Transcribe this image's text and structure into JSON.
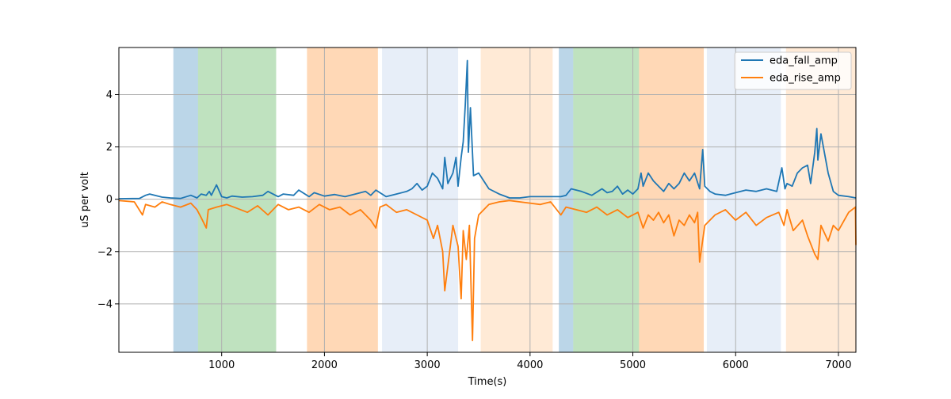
{
  "chart_data": {
    "type": "line",
    "title": "",
    "xlabel": "Time(s)",
    "ylabel": "uS per volt",
    "xlim": [
      0,
      7170
    ],
    "ylim": [
      -5.85,
      5.8
    ],
    "xticks": [
      1000,
      2000,
      3000,
      4000,
      5000,
      6000,
      7000
    ],
    "xtick_labels": [
      "1000",
      "2000",
      "3000",
      "4000",
      "5000",
      "6000",
      "7000"
    ],
    "yticks": [
      -4,
      -2,
      0,
      2,
      4
    ],
    "ytick_labels": [
      "−4",
      "−2",
      "0",
      "2",
      "4"
    ],
    "grid": true,
    "legend_position": "top-right",
    "colors": {
      "fall": "#1f77b4",
      "rise": "#ff7f0e",
      "grid": "#b0b0b0"
    },
    "shaded_regions": [
      {
        "x0": 530,
        "x1": 770,
        "color": "#1f77b4",
        "alpha": 0.3
      },
      {
        "x0": 770,
        "x1": 1530,
        "color": "#2ca02c",
        "alpha": 0.3
      },
      {
        "x0": 1830,
        "x1": 2520,
        "color": "#ff7f0e",
        "alpha": 0.3
      },
      {
        "x0": 2560,
        "x1": 3300,
        "color": "#aec7e8",
        "alpha": 0.3
      },
      {
        "x0": 3520,
        "x1": 4220,
        "color": "#ffbb78",
        "alpha": 0.3
      },
      {
        "x0": 4280,
        "x1": 4420,
        "color": "#1f77b4",
        "alpha": 0.3
      },
      {
        "x0": 4420,
        "x1": 5060,
        "color": "#2ca02c",
        "alpha": 0.3
      },
      {
        "x0": 5060,
        "x1": 5690,
        "color": "#ff7f0e",
        "alpha": 0.3
      },
      {
        "x0": 5720,
        "x1": 6440,
        "color": "#aec7e8",
        "alpha": 0.3
      },
      {
        "x0": 6490,
        "x1": 7170,
        "color": "#ffbb78",
        "alpha": 0.3
      }
    ],
    "series": [
      {
        "name": "eda_fall_amp",
        "color": "#1f77b4",
        "x": [
          0,
          200,
          260,
          300,
          420,
          500,
          600,
          700,
          760,
          800,
          850,
          880,
          900,
          950,
          1000,
          1050,
          1100,
          1200,
          1300,
          1400,
          1450,
          1550,
          1600,
          1700,
          1750,
          1850,
          1900,
          2000,
          2100,
          2200,
          2300,
          2400,
          2450,
          2500,
          2600,
          2700,
          2800,
          2850,
          2900,
          2950,
          3000,
          3050,
          3100,
          3150,
          3170,
          3200,
          3250,
          3280,
          3300,
          3330,
          3350,
          3370,
          3390,
          3400,
          3420,
          3450,
          3500,
          3600,
          3700,
          3800,
          3900,
          4000,
          4100,
          4200,
          4300,
          4350,
          4400,
          4500,
          4600,
          4700,
          4750,
          4800,
          4850,
          4900,
          4950,
          5000,
          5050,
          5080,
          5100,
          5150,
          5200,
          5250,
          5300,
          5350,
          5400,
          5450,
          5500,
          5550,
          5600,
          5650,
          5680,
          5700,
          5750,
          5800,
          5900,
          6000,
          6100,
          6200,
          6300,
          6400,
          6450,
          6480,
          6500,
          6550,
          6600,
          6650,
          6700,
          6730,
          6770,
          6790,
          6800,
          6830,
          6900,
          6950,
          7000,
          7100,
          7170
        ],
        "y": [
          0.02,
          0.03,
          0.15,
          0.2,
          0.08,
          0.05,
          0.03,
          0.15,
          0.05,
          0.2,
          0.15,
          0.3,
          0.15,
          0.55,
          0.1,
          0.05,
          0.12,
          0.08,
          0.1,
          0.15,
          0.3,
          0.1,
          0.2,
          0.15,
          0.35,
          0.1,
          0.25,
          0.12,
          0.18,
          0.1,
          0.2,
          0.3,
          0.15,
          0.35,
          0.1,
          0.2,
          0.3,
          0.4,
          0.6,
          0.35,
          0.5,
          1.0,
          0.8,
          0.4,
          1.6,
          0.6,
          1.0,
          1.6,
          0.5,
          1.6,
          2.2,
          3.6,
          5.3,
          1.8,
          3.5,
          0.9,
          1.0,
          0.4,
          0.2,
          0.05,
          0.05,
          0.1,
          0.1,
          0.1,
          0.1,
          0.15,
          0.4,
          0.3,
          0.15,
          0.4,
          0.25,
          0.3,
          0.5,
          0.2,
          0.35,
          0.2,
          0.4,
          1.0,
          0.5,
          1.0,
          0.7,
          0.5,
          0.3,
          0.6,
          0.4,
          0.6,
          1.0,
          0.7,
          1.0,
          0.4,
          1.9,
          0.5,
          0.3,
          0.2,
          0.15,
          0.25,
          0.35,
          0.3,
          0.4,
          0.3,
          1.2,
          0.4,
          0.6,
          0.5,
          1.0,
          1.2,
          1.3,
          0.6,
          1.8,
          2.7,
          1.5,
          2.5,
          1.0,
          0.3,
          0.15,
          0.1,
          0.05
        ]
      },
      {
        "name": "eda_rise_amp",
        "color": "#ff7f0e",
        "x": [
          0,
          150,
          230,
          260,
          350,
          420,
          500,
          600,
          700,
          760,
          800,
          850,
          870,
          950,
          1050,
          1150,
          1250,
          1350,
          1450,
          1550,
          1650,
          1750,
          1850,
          1950,
          2050,
          2150,
          2250,
          2350,
          2450,
          2500,
          2540,
          2600,
          2700,
          2800,
          2900,
          3000,
          3060,
          3100,
          3150,
          3170,
          3250,
          3300,
          3330,
          3350,
          3380,
          3410,
          3440,
          3460,
          3500,
          3600,
          3700,
          3800,
          3900,
          4000,
          4100,
          4200,
          4300,
          4350,
          4450,
          4550,
          4650,
          4750,
          4850,
          4950,
          5050,
          5100,
          5150,
          5200,
          5250,
          5300,
          5350,
          5400,
          5450,
          5500,
          5550,
          5600,
          5630,
          5650,
          5700,
          5800,
          5900,
          6000,
          6100,
          6200,
          6300,
          6420,
          6470,
          6500,
          6560,
          6650,
          6700,
          6770,
          6800,
          6830,
          6900,
          6950,
          7000,
          7100,
          7165,
          7170
        ],
        "y": [
          -0.05,
          -0.1,
          -0.6,
          -0.2,
          -0.3,
          -0.1,
          -0.2,
          -0.3,
          -0.15,
          -0.4,
          -0.7,
          -1.1,
          -0.4,
          -0.3,
          -0.2,
          -0.35,
          -0.5,
          -0.25,
          -0.6,
          -0.2,
          -0.4,
          -0.3,
          -0.5,
          -0.2,
          -0.4,
          -0.3,
          -0.6,
          -0.4,
          -0.8,
          -1.1,
          -0.3,
          -0.2,
          -0.5,
          -0.4,
          -0.6,
          -0.8,
          -1.5,
          -1.0,
          -2.0,
          -3.5,
          -1.0,
          -1.8,
          -3.8,
          -1.2,
          -2.3,
          -1.0,
          -5.4,
          -1.5,
          -0.6,
          -0.2,
          -0.1,
          -0.05,
          -0.1,
          -0.15,
          -0.2,
          -0.1,
          -0.6,
          -0.3,
          -0.4,
          -0.5,
          -0.3,
          -0.6,
          -0.4,
          -0.7,
          -0.5,
          -1.1,
          -0.6,
          -0.8,
          -0.5,
          -0.9,
          -0.6,
          -1.4,
          -0.8,
          -1.0,
          -0.6,
          -0.9,
          -0.5,
          -2.4,
          -1.0,
          -0.6,
          -0.4,
          -0.8,
          -0.5,
          -1.0,
          -0.7,
          -0.5,
          -1.0,
          -0.4,
          -1.2,
          -0.8,
          -1.4,
          -2.1,
          -2.3,
          -1.0,
          -1.6,
          -1.0,
          -1.2,
          -0.5,
          -0.3,
          -1.75
        ]
      }
    ]
  }
}
